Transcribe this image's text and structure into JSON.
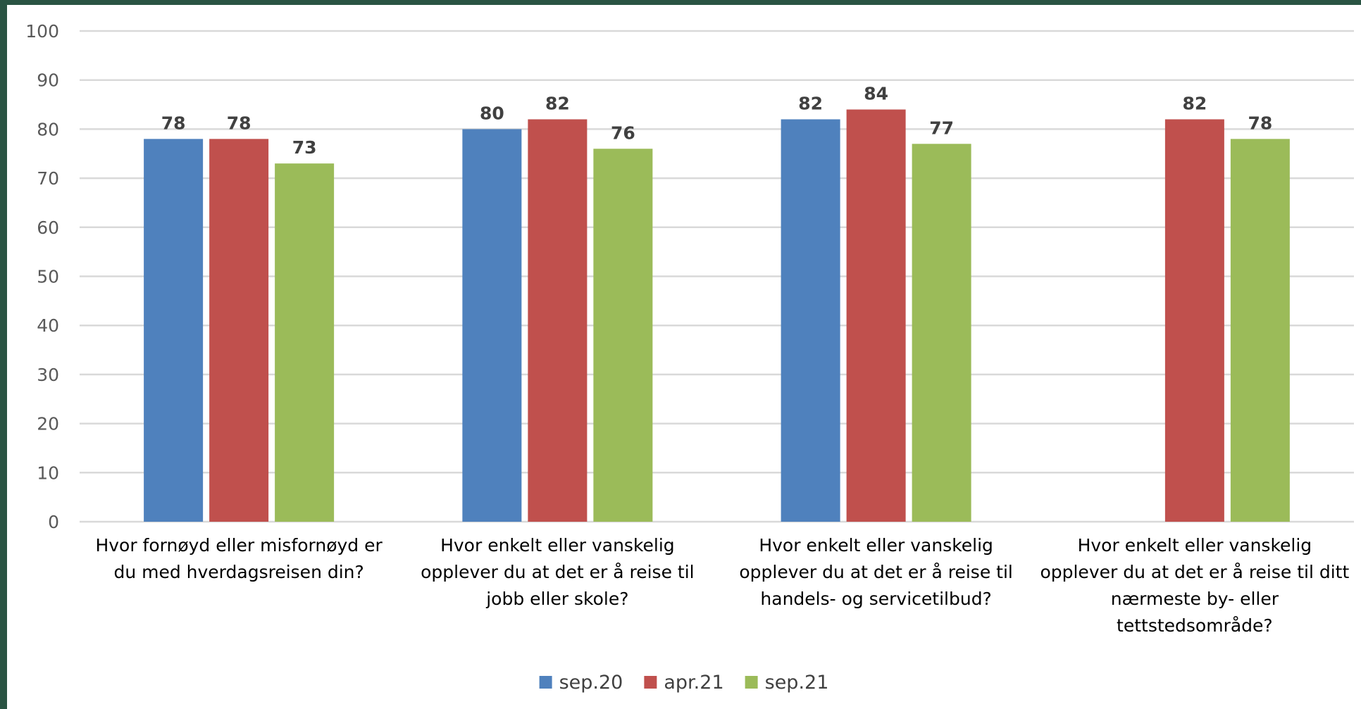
{
  "chart_data": {
    "type": "bar",
    "title": "",
    "xlabel": "",
    "ylabel": "",
    "ylim": [
      0,
      100
    ],
    "yticks": [
      0,
      10,
      20,
      30,
      40,
      50,
      60,
      70,
      80,
      90,
      100
    ],
    "grid": true,
    "legend_position": "bottom",
    "categories": [
      [
        "Hvor fornøyd eller misfornøyd er",
        "du med hverdagsreisen din?"
      ],
      [
        "Hvor enkelt eller vanskelig",
        "opplever du at det er å reise til",
        "jobb eller skole?"
      ],
      [
        "Hvor enkelt eller vanskelig",
        "opplever du at det er å reise til",
        "handels- og servicetilbud?"
      ],
      [
        "Hvor enkelt eller vanskelig",
        "opplever du at det er å reise til ditt",
        "nærmeste by- eller",
        "tettstedsområde?"
      ]
    ],
    "series": [
      {
        "name": "sep.20",
        "color": "#4f81bd",
        "values": [
          78,
          80,
          82,
          null
        ],
        "labels": [
          "78",
          "80",
          "82",
          ""
        ]
      },
      {
        "name": "apr.21",
        "color": "#c0504d",
        "values": [
          78,
          82,
          84,
          82
        ],
        "labels": [
          "78",
          "82",
          "84",
          "82"
        ]
      },
      {
        "name": "sep.21",
        "color": "#9bbb59",
        "values": [
          73,
          76,
          77,
          78
        ],
        "labels": [
          "73",
          "76",
          "77",
          "78"
        ]
      }
    ]
  }
}
